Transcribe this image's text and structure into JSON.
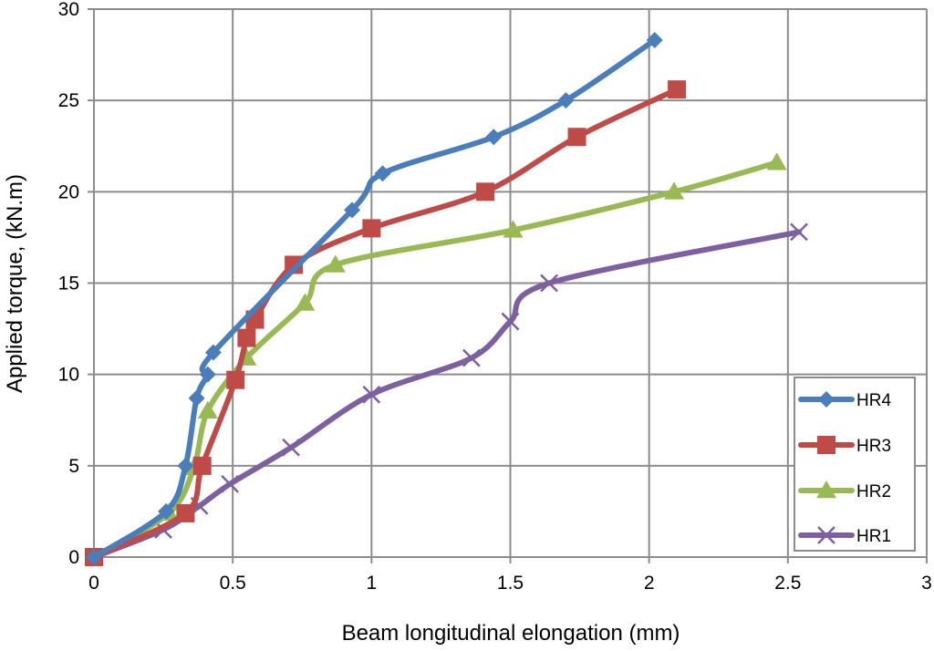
{
  "chart_data": {
    "type": "line",
    "title": "",
    "xlabel": "Beam longitudinal elongation (mm)",
    "ylabel": "Applied torque, (kN.m)",
    "xlim": [
      0,
      3
    ],
    "ylim": [
      0,
      30
    ],
    "xticks": [
      "0",
      "0.5",
      "1",
      "1.5",
      "2",
      "2.5",
      "3"
    ],
    "xtick_values": [
      0,
      0.5,
      1,
      1.5,
      2,
      2.5,
      3
    ],
    "yticks": [
      "0",
      "5",
      "10",
      "15",
      "20",
      "25",
      "30"
    ],
    "ytick_values": [
      0,
      5,
      10,
      15,
      20,
      25,
      30
    ],
    "grid": true,
    "legend_position": "bottom-right",
    "series": [
      {
        "name": "HR4",
        "color": "#4a7ebb",
        "marker": "diamond",
        "x": [
          0,
          0.26,
          0.33,
          0.37,
          0.41,
          0.43,
          0.93,
          1.04,
          1.44,
          1.7,
          2.02
        ],
        "y": [
          0,
          2.5,
          5.0,
          8.7,
          10.0,
          11.2,
          19.0,
          21.0,
          23.0,
          25.0,
          28.3
        ]
      },
      {
        "name": "HR3",
        "color": "#be4b48",
        "marker": "square",
        "x": [
          0,
          0.33,
          0.39,
          0.51,
          0.55,
          0.58,
          0.72,
          1.0,
          1.41,
          1.74,
          2.1
        ],
        "y": [
          0,
          2.4,
          5.0,
          9.7,
          12.0,
          13.0,
          16.0,
          18.0,
          20.0,
          23.0,
          25.6
        ]
      },
      {
        "name": "HR2",
        "color": "#98b954",
        "marker": "triangle",
        "x": [
          0,
          0.27,
          0.36,
          0.41,
          0.55,
          0.76,
          0.87,
          1.51,
          2.09,
          2.46
        ],
        "y": [
          0,
          2.4,
          4.9,
          8.0,
          10.9,
          13.9,
          16.0,
          17.9,
          20.0,
          21.6
        ]
      },
      {
        "name": "HR1",
        "color": "#7d60a0",
        "marker": "x",
        "x": [
          0,
          0.25,
          0.38,
          0.49,
          0.71,
          1.0,
          1.36,
          1.5,
          1.64,
          2.54
        ],
        "y": [
          0,
          1.5,
          2.8,
          4.0,
          6.0,
          8.9,
          10.9,
          12.9,
          15.0,
          17.8
        ]
      }
    ]
  }
}
